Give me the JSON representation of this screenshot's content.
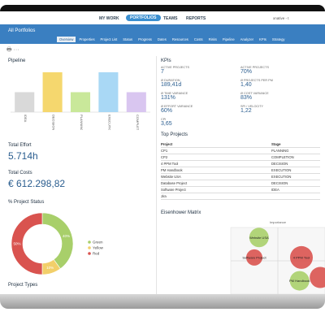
{
  "nav": {
    "items": [
      "MY WORK",
      "PORTFOLIOS",
      "TEAMS",
      "REPORTS"
    ],
    "user": "xnative - t"
  },
  "header": {
    "title": "All Portfolios",
    "tabs": [
      "Overview",
      "Properties",
      "Project List",
      "Status",
      "Progress",
      "Dates",
      "Resources",
      "Costs",
      "Risks",
      "Pipeline",
      "Analyzer",
      "KPIs",
      "Strategy"
    ]
  },
  "pipeline": {
    "title": "Pipeline",
    "type": "bar",
    "categories": [
      "IDEA",
      "DECISION",
      "PLANNING",
      "EXECUTION",
      "COMPLETION"
    ],
    "values": [
      1,
      2,
      1,
      2,
      1
    ],
    "colors": [
      "#d9d9d9",
      "#f5d76e",
      "#c9e89a",
      "#a9d8f5",
      "#d9c6f0"
    ],
    "ylim": [
      0,
      2.2
    ]
  },
  "total_effort": {
    "label": "Total Effort",
    "value": "5.714h"
  },
  "total_costs": {
    "label": "Total Costs",
    "value": "€ 612.298,82"
  },
  "project_status": {
    "title": "% Project Status",
    "type": "pie",
    "categories": [
      "Green",
      "Yellow",
      "Red"
    ],
    "values": [
      40,
      10,
      50
    ],
    "value_labels": [
      "40%",
      "10%",
      "50%"
    ],
    "colors": [
      "#a8cf6a",
      "#f2cf6a",
      "#d9534f"
    ]
  },
  "project_types": {
    "title": "Project Types"
  },
  "kpis": {
    "title": "KPIs",
    "items": [
      {
        "label": "ACTIVE PROJECTS",
        "value": "7"
      },
      {
        "label": "ACTIVE PROJECTS",
        "value": "70%"
      },
      {
        "label": "Ø DURATION",
        "value": "189,41d"
      },
      {
        "label": "Ø PROJECTS PER PM",
        "value": "1,40"
      },
      {
        "label": "Ø TIME VARIANCE",
        "value": "131%"
      },
      {
        "label": "Ø COST VARIANCE",
        "value": "83%"
      },
      {
        "label": "Ø EFFORT VARIANCE",
        "value": "60%"
      },
      {
        "label": "SPI / VELOCITY",
        "value": "1,22"
      },
      {
        "label": "CPI",
        "value": "3,65"
      }
    ]
  },
  "top_projects": {
    "title": "Top Projects",
    "columns": [
      "Project",
      "Stage"
    ],
    "rows": [
      [
        "CP1",
        "PLANNING"
      ],
      [
        "CP2",
        "COMPLETION"
      ],
      [
        "4 PPM Tool",
        "DECISION"
      ],
      [
        "PM Handbook",
        "EXECUTION"
      ],
      [
        "Website USA",
        "EXECUTION"
      ],
      [
        "Database Project",
        "DECISION"
      ],
      [
        "Software Project",
        "IDEA"
      ],
      [
        "Jira",
        null
      ]
    ]
  },
  "eisenhower": {
    "title": "Eisenhower Matrix",
    "axis_label": "Importance",
    "type": "scatter",
    "xlim": [
      0,
      10
    ],
    "ylim": [
      0,
      10
    ],
    "points": [
      {
        "label": "Website USA",
        "x": 3,
        "y": 8.5,
        "size": 12,
        "color": "#a8cf6a"
      },
      {
        "label": "Software Project",
        "x": 2.5,
        "y": 5.5,
        "size": 10,
        "color": "#d9534f"
      },
      {
        "label": "4 PPM Tool",
        "x": 7.5,
        "y": 5.5,
        "size": 14,
        "color": "#d9534f"
      },
      {
        "label": "PM Handbook",
        "x": 7.3,
        "y": 2,
        "size": 12,
        "color": "#a8cf6a"
      },
      {
        "label": null,
        "x": 9.5,
        "y": 2.5,
        "size": 13,
        "color": "#d9534f"
      }
    ]
  }
}
